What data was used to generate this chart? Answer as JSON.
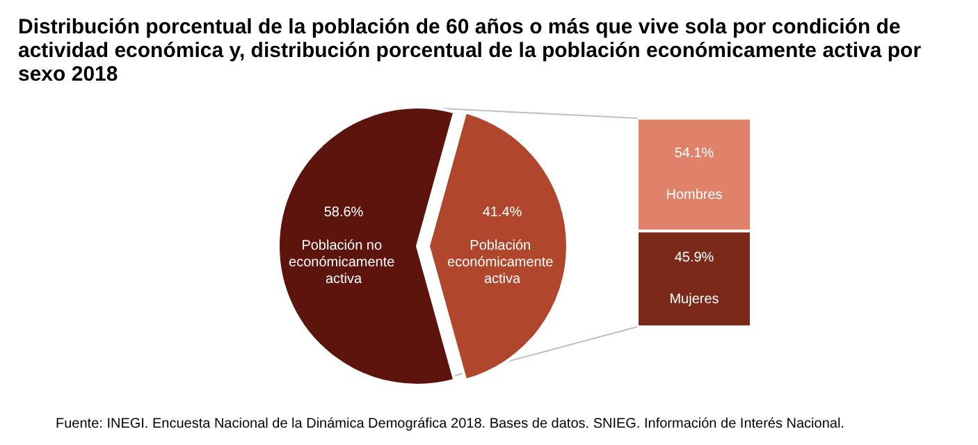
{
  "chart_data": [
    {
      "type": "pie",
      "title": "Distribución porcentual de la población de 60 años o más que vive sola por condición de actividad económica y, distribución porcentual de la población económicamente activa por sexo 2018",
      "categories": [
        "Población no económicamente activa",
        "Población económicamente activa"
      ],
      "values": [
        58.6,
        41.4
      ],
      "colors": [
        "#5c140c",
        "#b0472c"
      ],
      "value_labels": [
        "58.6%",
        "41.4%"
      ],
      "annotations": [
        "Fuente: INEGI. Encuesta Nacional de la Dinámica Demográfica 2018. Bases de datos. SNIEG. Información de Interés Nacional."
      ],
      "legend": false
    },
    {
      "type": "bar",
      "stacked": true,
      "categories": [
        null
      ],
      "legend": false,
      "series": [
        {
          "name": "Mujeres",
          "color": "#7b2a1a",
          "values": [
            45.9
          ],
          "value_labels": [
            "45.9%"
          ]
        },
        {
          "name": "Hombres",
          "color": "#e0826a",
          "values": [
            54.1
          ],
          "value_labels": [
            "54.1%"
          ]
        }
      ]
    }
  ]
}
